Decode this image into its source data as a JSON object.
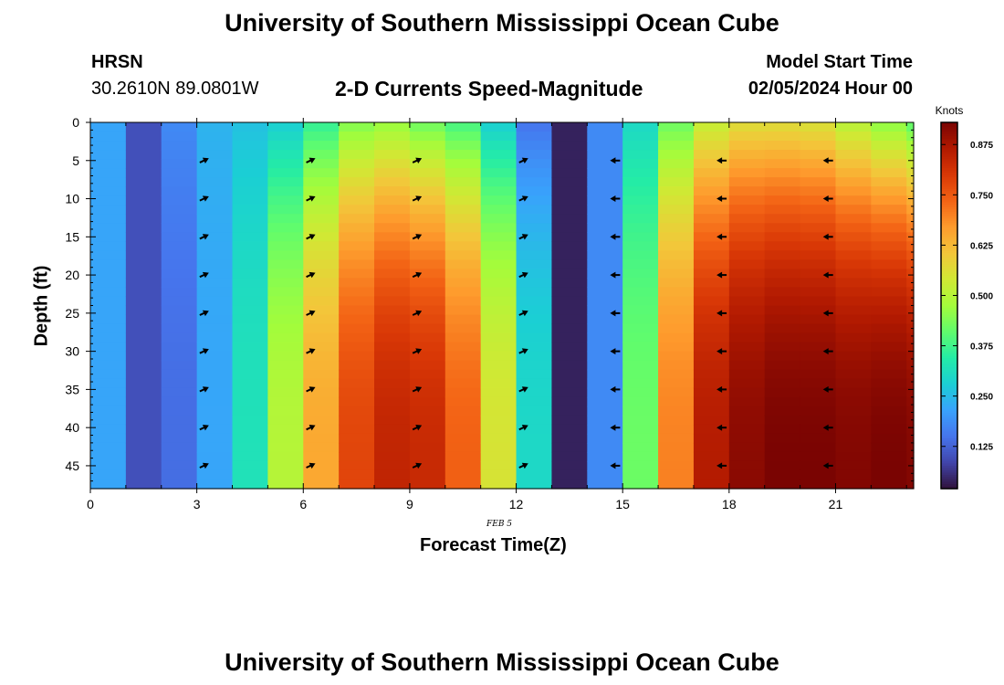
{
  "header": {
    "title": "University of Southern Mississippi Ocean Cube",
    "station": "HRSN",
    "location": "30.2610N  89.0801W",
    "subtitle": "2-D Currents Speed-Magnitude",
    "model_start_label": "Model Start Time",
    "model_start_value": "02/05/2024 Hour 00"
  },
  "date_label": "FEB 5",
  "footer": {
    "title": "University of Southern Mississippi Ocean Cube"
  },
  "colors": {
    "colormap": [
      "#30123b",
      "#4145ab",
      "#4675ed",
      "#39a2fc",
      "#1bcfd4",
      "#24eca6",
      "#61fc6c",
      "#a4fc3b",
      "#d1e834",
      "#f3c63a",
      "#fe9b2d",
      "#f36315",
      "#d93806",
      "#b11901",
      "#7a0402"
    ],
    "arrow": "#000000"
  },
  "chart_data": {
    "type": "heatmap",
    "xlabel": "Forecast Time(Z)",
    "ylabel": "Depth (ft)",
    "xlim": [
      0,
      23.2
    ],
    "ylim": [
      0,
      48
    ],
    "y_inverted": true,
    "x_ticks": [
      0,
      3,
      6,
      9,
      12,
      15,
      18,
      21
    ],
    "y_ticks": [
      0,
      5,
      10,
      15,
      20,
      25,
      30,
      35,
      40,
      45
    ],
    "colorbar": {
      "label": "Knots",
      "range": [
        0.02,
        0.93
      ],
      "ticks": [
        "0.125",
        "0.250",
        "0.375",
        "0.500",
        "0.625",
        "0.750",
        "0.875"
      ]
    },
    "speed_profiles": {
      "hours": [
        0,
        1,
        2,
        3,
        4,
        5,
        6,
        7,
        8,
        9,
        10,
        11,
        12,
        13,
        14,
        15,
        16,
        17,
        18,
        19,
        20,
        21,
        22,
        23
      ],
      "surface_knots": [
        0.22,
        0.1,
        0.18,
        0.24,
        0.26,
        0.28,
        0.36,
        0.44,
        0.46,
        0.42,
        0.38,
        0.28,
        0.15,
        0.04,
        0.18,
        0.3,
        0.42,
        0.52,
        0.56,
        0.56,
        0.55,
        0.5,
        0.45,
        0.4
      ],
      "bottom_knots": [
        0.22,
        0.1,
        0.14,
        0.22,
        0.32,
        0.5,
        0.65,
        0.78,
        0.84,
        0.83,
        0.74,
        0.55,
        0.3,
        0.04,
        0.18,
        0.42,
        0.7,
        0.86,
        0.91,
        0.93,
        0.93,
        0.92,
        0.93,
        0.92
      ]
    },
    "vectors": {
      "hours": [
        3.2,
        6.2,
        9.2,
        12.2,
        14.8,
        17.8,
        20.8
      ],
      "depths_ft": [
        5,
        10,
        15,
        20,
        25,
        30,
        35,
        40,
        45
      ],
      "direction": [
        "northeast",
        "northeast",
        "northeast",
        "northeast",
        "west",
        "west",
        "west"
      ]
    }
  }
}
